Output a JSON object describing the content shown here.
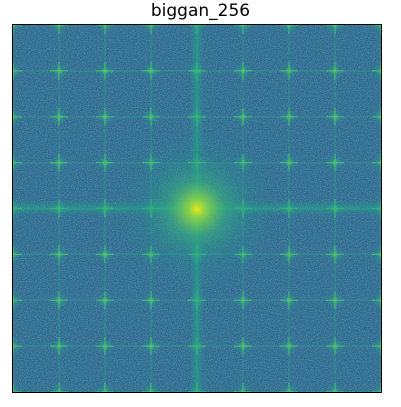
{
  "title": "biggan_256",
  "chart_data": {
    "type": "heatmap",
    "title": "biggan_256",
    "description_of_content": "",
    "colormap": "viridis",
    "axes_visible": false,
    "grid_period": 8,
    "center_value": 1.0,
    "background_value": 0.34,
    "peak_value": 0.55,
    "colors": {
      "background": "#2c6f8e",
      "noise_dark": "#3b528b",
      "mid": "#21918c",
      "bright": "#5ec962",
      "center": "#c8e020"
    }
  }
}
